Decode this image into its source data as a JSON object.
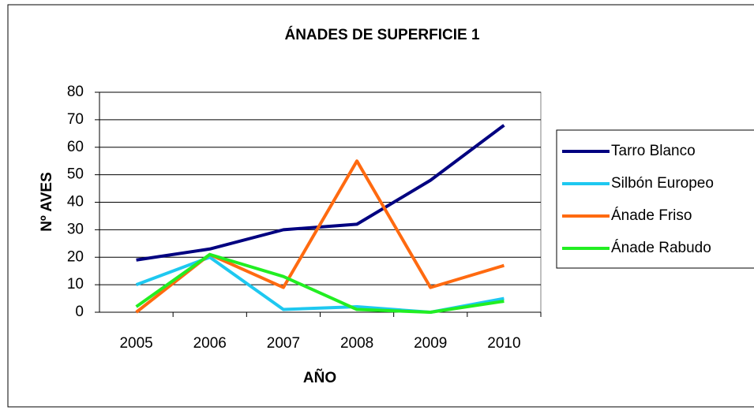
{
  "chart_data": {
    "type": "line",
    "title": "ÁNADES DE SUPERFICIE 1",
    "x_label": "AÑO",
    "y_label": "Nº AVES",
    "categories": [
      "2005",
      "2006",
      "2007",
      "2008",
      "2009",
      "2010"
    ],
    "series": [
      {
        "name": "Tarro Blanco",
        "color": "#000080",
        "values": [
          19,
          23,
          30,
          32,
          48,
          68
        ]
      },
      {
        "name": "Silbón Europeo",
        "color": "#1ec8f0",
        "values": [
          10,
          20,
          1,
          2,
          0,
          5
        ]
      },
      {
        "name": "Ánade Friso",
        "color": "#ff6a10",
        "values": [
          0,
          21,
          9,
          55,
          9,
          17
        ]
      },
      {
        "name": "Ánade Rabudo",
        "color": "#22ee22",
        "values": [
          2,
          21,
          13,
          1,
          0,
          4
        ]
      }
    ],
    "ylim": [
      0,
      80
    ],
    "yticks": [
      0,
      10,
      20,
      30,
      40,
      50,
      60,
      70,
      80
    ],
    "grid": true
  }
}
